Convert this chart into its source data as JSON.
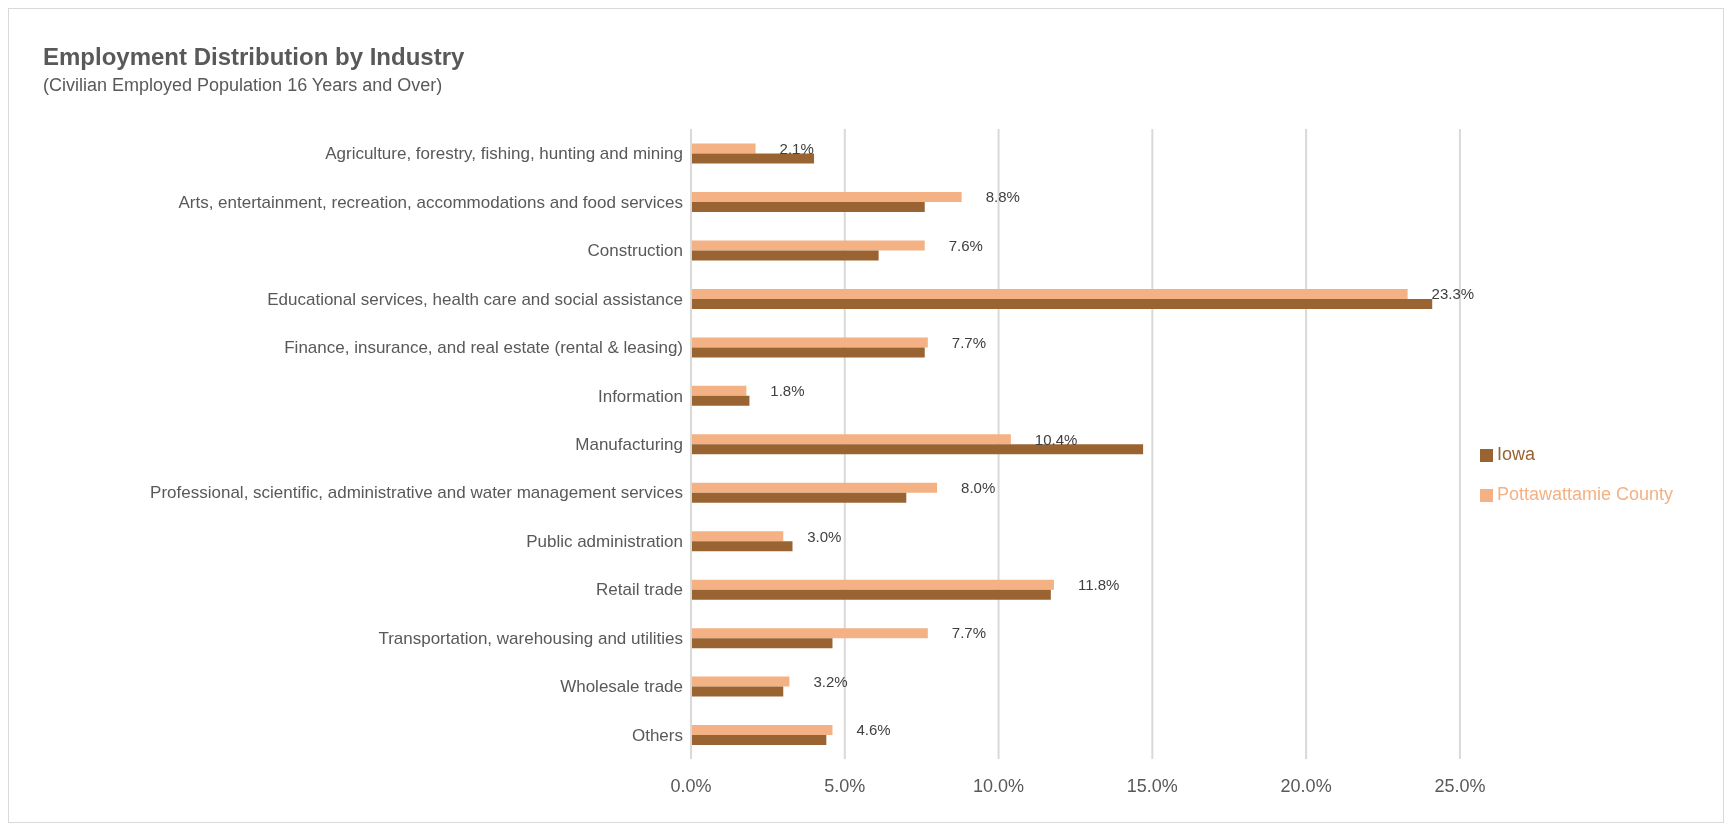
{
  "chart_data": {
    "type": "bar",
    "orientation": "horizontal",
    "title": "Employment Distribution by Industry",
    "subtitle": "(Civilian Employed Population 16 Years and Over)",
    "categories": [
      "Agriculture, forestry, fishing, hunting and mining",
      "Arts, entertainment, recreation, accommodations and food services",
      "Construction",
      "Educational services, health care and social assistance",
      "Finance, insurance, and real estate (rental & leasing)",
      "Information",
      "Manufacturing",
      "Professional, scientific, administrative and water management services",
      "Public administration",
      "Retail trade",
      "Transportation, warehousing and utilities",
      "Wholesale trade",
      "Others"
    ],
    "series": [
      {
        "name": "Pottawattamie County",
        "color": "#f4b183",
        "values": [
          2.1,
          8.8,
          7.6,
          23.3,
          7.7,
          1.8,
          10.4,
          8.0,
          3.0,
          11.8,
          7.7,
          3.2,
          4.6
        ],
        "value_labels": [
          "2.1%",
          "8.8%",
          "7.6%",
          "23.3%",
          "7.7%",
          "1.8%",
          "10.4%",
          "8.0%",
          "3.0%",
          "11.8%",
          "7.7%",
          "3.2%",
          "4.6%"
        ]
      },
      {
        "name": "Iowa",
        "color": "#9a6432",
        "values": [
          4.0,
          7.6,
          6.1,
          24.1,
          7.6,
          1.9,
          14.7,
          7.0,
          3.3,
          11.7,
          4.6,
          3.0,
          4.4
        ]
      }
    ],
    "xlim": [
      0,
      25
    ],
    "xticks": [
      {
        "value": 0,
        "label": "0.0%"
      },
      {
        "value": 5,
        "label": "5.0%"
      },
      {
        "value": 10,
        "label": "10.0%"
      },
      {
        "value": 15,
        "label": "15.0%"
      },
      {
        "value": 20,
        "label": "20.0%"
      },
      {
        "value": 25,
        "label": "25.0%"
      }
    ],
    "grid": "x",
    "legend": "right"
  }
}
